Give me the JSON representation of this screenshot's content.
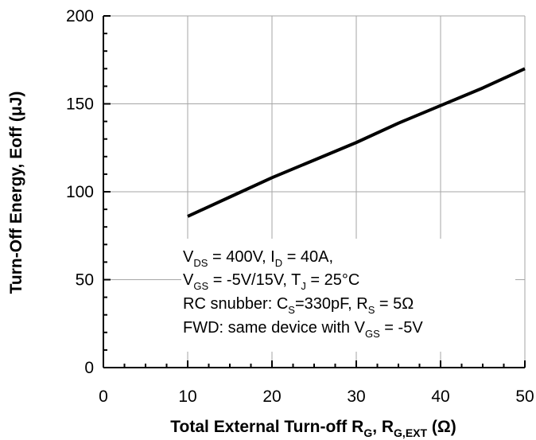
{
  "chart_data": {
    "type": "line",
    "title": "",
    "xlabel_parts": [
      "Total External Turn-off R",
      "G",
      ", R",
      "G,EXT",
      " (Ω)"
    ],
    "ylabel": "Turn-Off Energy, Eoff (μJ)",
    "xlim": [
      0,
      50
    ],
    "ylim": [
      0,
      200
    ],
    "x_ticks": [
      "0",
      "10",
      "20",
      "30",
      "40",
      "50"
    ],
    "y_ticks": [
      "0",
      "50",
      "100",
      "150",
      "200"
    ],
    "grid": true,
    "series": [
      {
        "x": [
          10,
          15,
          20,
          25,
          30,
          35,
          40,
          45,
          50
        ],
        "y": [
          86,
          97,
          108,
          118,
          128,
          139,
          149,
          159,
          170
        ]
      }
    ],
    "annotation_lines": [
      [
        "V",
        "DS",
        " = 400V, I",
        "D",
        " = 40A,"
      ],
      [
        "V",
        "GS",
        " = -5V/15V, T",
        "J",
        " = 25°C"
      ],
      [
        "RC snubber: C",
        "S",
        "=330pF, R",
        "S",
        " = 5Ω"
      ],
      [
        "FWD: same device with V",
        "GS",
        " = -5V"
      ]
    ]
  }
}
